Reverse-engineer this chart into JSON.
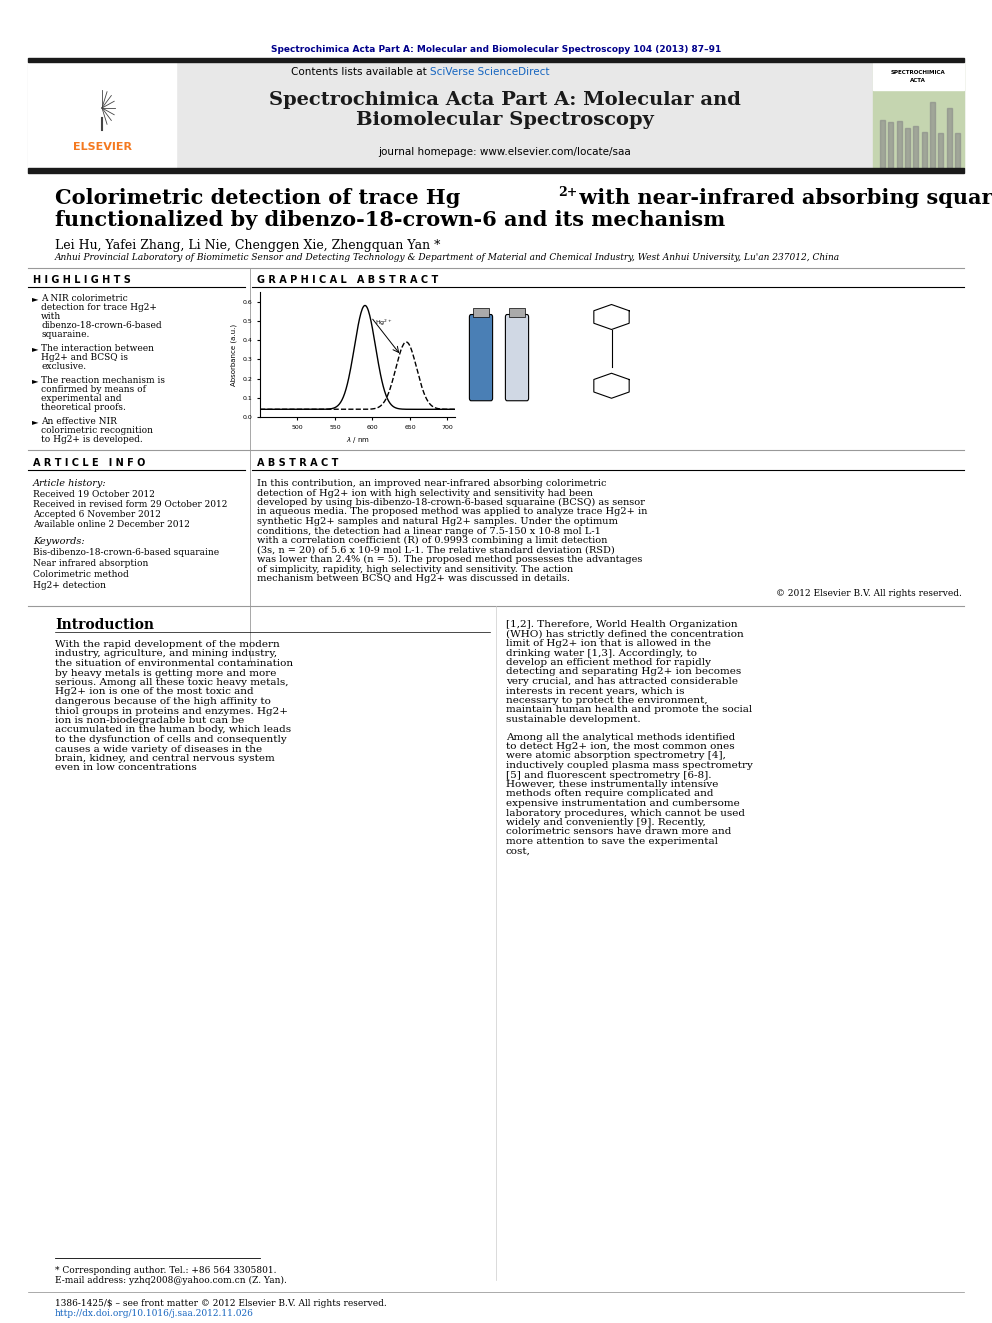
{
  "page_title_journal": "Spectrochimica Acta Part A: Molecular and Biomolecular Spectroscopy 104 (2013) 87–91",
  "journal_name_line1": "Spectrochimica Acta Part A: Molecular and",
  "journal_name_line2": "Biomolecular Spectroscopy",
  "contents_text": "Contents lists available at ",
  "sciverse_text": "SciVerse ScienceDirect",
  "journal_homepage": "journal homepage: www.elsevier.com/locate/saa",
  "article_title_line1": "Colorimetric detection of trace Hg",
  "article_title_sup": "2+",
  "article_title_line1b": " with near-infrared absorbing squaraine",
  "article_title_line2": "functionalized by dibenzo-18-crown-6 and its mechanism",
  "authors": "Lei Hu, Yafei Zhang, Li Nie, Chenggen Xie, Zhengquan Yan *",
  "affiliation": "Anhui Provincial Laboratory of Biomimetic Sensor and Detecting Technology & Department of Material and Chemical Industry, West Anhui University, Lu'an 237012, China",
  "highlights_title": "H I G H L I G H T S",
  "highlights": [
    "A NIR colorimetric detection for trace Hg2+ with dibenzo-18-crown-6-based squaraine.",
    "The interaction between Hg2+ and BCSQ is exclusive.",
    "The reaction mechanism is confirmed by means of experimental and theoretical proofs.",
    "An effective NIR colorimetric recognition to Hg2+ is developed."
  ],
  "graphical_abstract_title": "G R A P H I C A L   A B S T R A C T",
  "article_info_title": "A R T I C L E   I N F O",
  "article_history_label": "Article history:",
  "received_label": "Received 19 October 2012",
  "received_revised": "Received in revised form 29 October 2012",
  "accepted": "Accepted 6 November 2012",
  "available": "Available online 2 December 2012",
  "keywords_label": "Keywords:",
  "keywords": [
    "Bis-dibenzo-18-crown-6-based squaraine",
    "Near infrared absorption",
    "Colorimetric method",
    "Hg2+ detection"
  ],
  "abstract_title": "A B S T R A C T",
  "abstract_text": "In this contribution, an improved near-infrared absorbing colorimetric detection of Hg2+ ion with high selectivity and sensitivity had been developed by using bis-dibenzo-18-crown-6-based squaraine (BCSQ) as sensor in aqueous media. The proposed method was applied to analyze trace Hg2+ in synthetic Hg2+ samples and natural Hg2+ samples. Under the optimum conditions, the detection had a linear range of 7.5-150 x 10-8 mol L-1 with a correlation coefficient (R) of 0.9993 combining a limit detection (3s, n = 20) of 5.6 x 10-9 mol L-1. The relative standard deviation (RSD) was lower than 2.4% (n = 5). The proposed method possesses the advantages of simplicity, rapidity, high selectivity and sensitivity. The action mechanism between BCSQ and Hg2+ was discussed in details.",
  "copyright_text": "© 2012 Elsevier B.V. All rights reserved.",
  "intro_title": "Introduction",
  "intro_text_col1": "With the rapid development of the modern industry, agriculture, and mining industry, the situation of environmental contamination by heavy metals is getting more and more serious. Among all these toxic heavy metals, Hg2+ ion is one of the most toxic and dangerous because of the high affinity to thiol groups in proteins and enzymes. Hg2+ ion is non-biodegradable but can be accumulated in the human body, which leads to the dysfunction of cells and consequently causes a wide variety of diseases in the brain, kidney, and central nervous system even in low concentrations",
  "intro_text_col2": "[1,2]. Therefore, World Health Organization (WHO) has strictly defined the concentration limit of Hg2+ ion that is allowed in the drinking water [1,3]. Accordingly, to develop an efficient method for rapidly detecting and separating Hg2+ ion becomes very crucial, and has attracted considerable interests in recent years, which is necessary to protect the environment, maintain human health and promote the social sustainable development.\n\nAmong all the analytical methods identified to detect Hg2+ ion, the most common ones were atomic absorption spectrometry [4], inductively coupled plasma mass spectrometry [5] and fluorescent spectrometry [6-8]. However, these instrumentally intensive methods often require complicated and expensive instrumentation and cumbersome laboratory procedures, which cannot be used widely and conveniently [9]. Recently, colorimetric sensors have drawn more and more attention to save the experimental cost,",
  "footnote_star": "* Corresponding author. Tel.: +86 564 3305801.",
  "footnote_email": "E-mail address: yzhq2008@yahoo.com.cn (Z. Yan).",
  "footer_line1": "1386-1425/$ – see front matter © 2012 Elsevier B.V. All rights reserved.",
  "footer_line2": "http://dx.doi.org/10.1016/j.saa.2012.11.026",
  "background_color": "#ffffff",
  "header_bg": "#e8e8e8",
  "thick_bar_color": "#1a1a1a",
  "journal_title_color": "#1a1a1a",
  "sciverse_color": "#1565c0",
  "elsevier_color": "#f47920",
  "page_journal_color": "#00008b",
  "section_title_color": "#1a1a1a"
}
